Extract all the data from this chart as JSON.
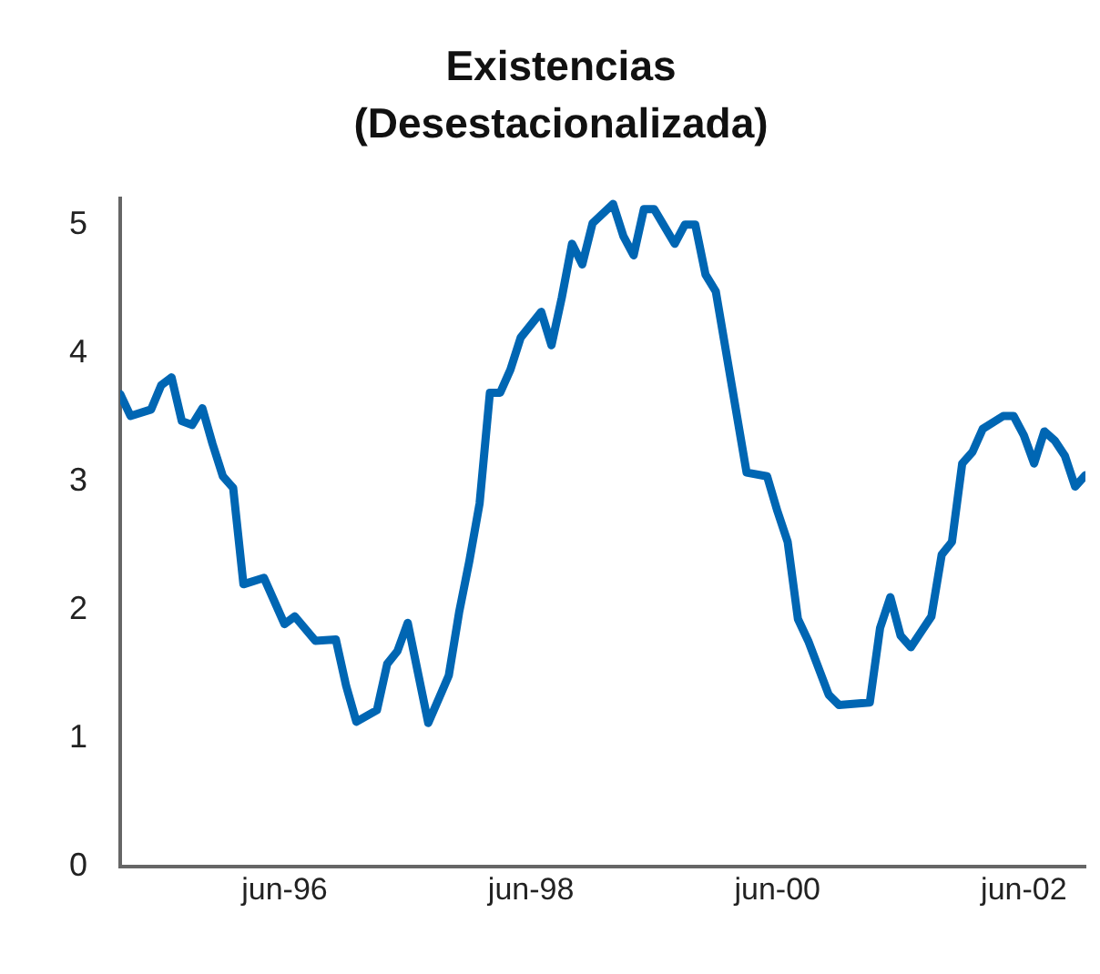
{
  "chart_data": {
    "type": "line",
    "title": "Existencias",
    "subtitle": "(Desestacionalizada)",
    "x": [
      "1995-02",
      "1995-03",
      "1995-05",
      "1995-06",
      "1995-07",
      "1995-08",
      "1995-09",
      "1995-10",
      "1995-11",
      "1995-12",
      "1996-01",
      "1996-02",
      "1996-04",
      "1996-06",
      "1996-07",
      "1996-09",
      "1996-11",
      "1996-12",
      "1997-01",
      "1997-03",
      "1997-04",
      "1997-05",
      "1997-06",
      "1997-08",
      "1997-10",
      "1997-11",
      "1997-12",
      "1998-01",
      "1998-02",
      "1998-03",
      "1998-04",
      "1998-05",
      "1998-07",
      "1998-08",
      "1998-09",
      "1998-10",
      "1998-11",
      "1998-12",
      "1999-02",
      "1999-03",
      "1999-04",
      "1999-05",
      "1999-06",
      "1999-08",
      "1999-09",
      "1999-10",
      "1999-11",
      "1999-12",
      "2000-03",
      "2000-05",
      "2000-06",
      "2000-07",
      "2000-08",
      "2000-09",
      "2000-11",
      "2000-12",
      "2001-03",
      "2001-04",
      "2001-05",
      "2001-06",
      "2001-07",
      "2001-09",
      "2001-10",
      "2001-11",
      "2001-12",
      "2002-01",
      "2002-02",
      "2002-04",
      "2002-05",
      "2002-06",
      "2002-07",
      "2002-08",
      "2002-09",
      "2002-10",
      "2002-11",
      "2002-12"
    ],
    "series": [
      {
        "color": "#0066b3",
        "values": [
          3.68,
          3.51,
          3.56,
          3.75,
          3.81,
          3.47,
          3.44,
          3.57,
          3.29,
          3.04,
          2.95,
          2.2,
          2.25,
          1.89,
          1.95,
          1.76,
          1.77,
          1.41,
          1.13,
          1.22,
          1.58,
          1.68,
          1.9,
          1.12,
          1.49,
          1.98,
          2.38,
          2.83,
          3.69,
          3.69,
          3.87,
          4.12,
          4.32,
          4.06,
          4.43,
          4.85,
          4.69,
          5.01,
          5.16,
          4.91,
          4.76,
          5.12,
          5.12,
          4.85,
          5.0,
          5.0,
          4.61,
          4.48,
          3.07,
          3.04,
          2.77,
          2.53,
          1.93,
          1.76,
          1.34,
          1.26,
          1.28,
          1.86,
          2.1,
          1.8,
          1.71,
          1.95,
          2.43,
          2.53,
          3.14,
          3.23,
          3.41,
          3.51,
          3.51,
          3.36,
          3.14,
          3.39,
          3.32,
          3.2,
          2.96,
          3.05
        ]
      }
    ],
    "xlim": [
      "1995-02",
      "2002-12"
    ],
    "xticks": [
      {
        "value": "1996-06",
        "label": "jun-96"
      },
      {
        "value": "1998-06",
        "label": "jun-98"
      },
      {
        "value": "2000-06",
        "label": "jun-00"
      },
      {
        "value": "2002-06",
        "label": "jun-02"
      }
    ],
    "ylim": [
      0,
      5.2
    ],
    "yticks": [
      0,
      1,
      2,
      3,
      4,
      5
    ],
    "grid": false,
    "legend": false,
    "marker": "none",
    "line_style": "solid"
  }
}
